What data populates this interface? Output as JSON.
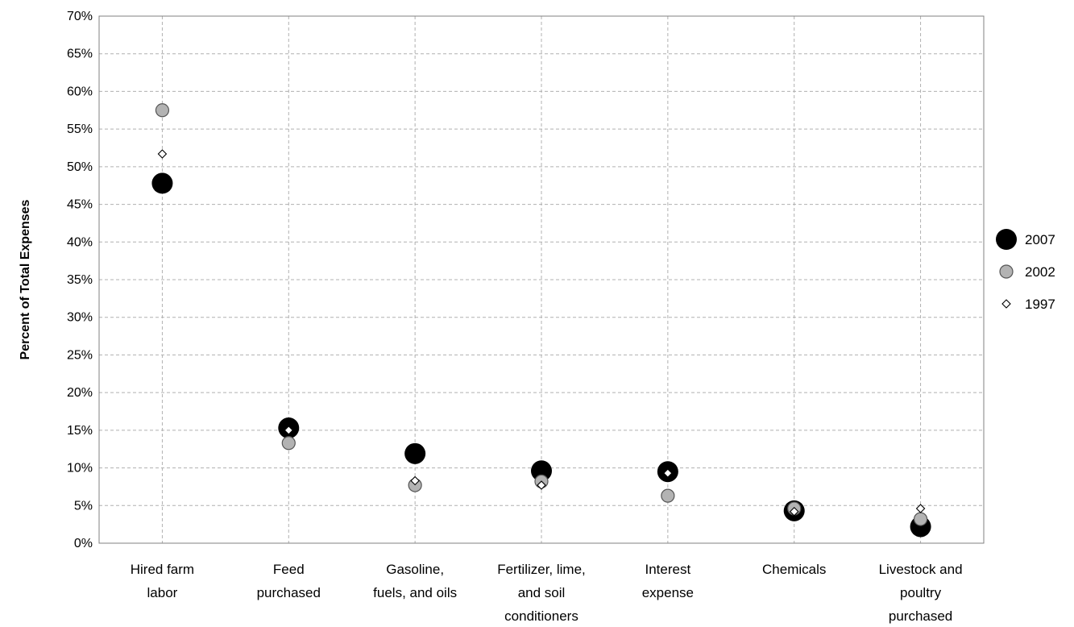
{
  "chart_data": {
    "type": "scatter",
    "title": "",
    "xlabel": "",
    "ylabel": "Percent of Total Expenses",
    "ylim": [
      0,
      70
    ],
    "ytick_step": 5,
    "ytick_suffix": "%",
    "grid": true,
    "legend_position": "right",
    "categories": [
      [
        "Hired farm",
        "labor"
      ],
      [
        "Feed",
        "purchased"
      ],
      [
        "Gasoline,",
        "fuels, and oils"
      ],
      [
        "Fertilizer, lime,",
        "and soil",
        "conditioners"
      ],
      [
        "Interest",
        "expense"
      ],
      [
        "Chemicals"
      ],
      [
        "Livestock and",
        "poultry",
        "purchased"
      ]
    ],
    "series": [
      {
        "name": "2007",
        "marker": "large-circle",
        "color": "#000000",
        "values": [
          47.8,
          15.3,
          11.9,
          9.6,
          9.5,
          4.3,
          2.2
        ]
      },
      {
        "name": "2002",
        "marker": "medium-circle",
        "color": "#b3b3b3",
        "values": [
          57.5,
          13.3,
          7.7,
          8.2,
          6.3,
          4.6,
          3.2
        ]
      },
      {
        "name": "1997",
        "marker": "small-diamond",
        "color": "#ffffff",
        "values": [
          51.7,
          15.0,
          8.3,
          7.7,
          9.3,
          4.2,
          4.6
        ]
      }
    ]
  }
}
